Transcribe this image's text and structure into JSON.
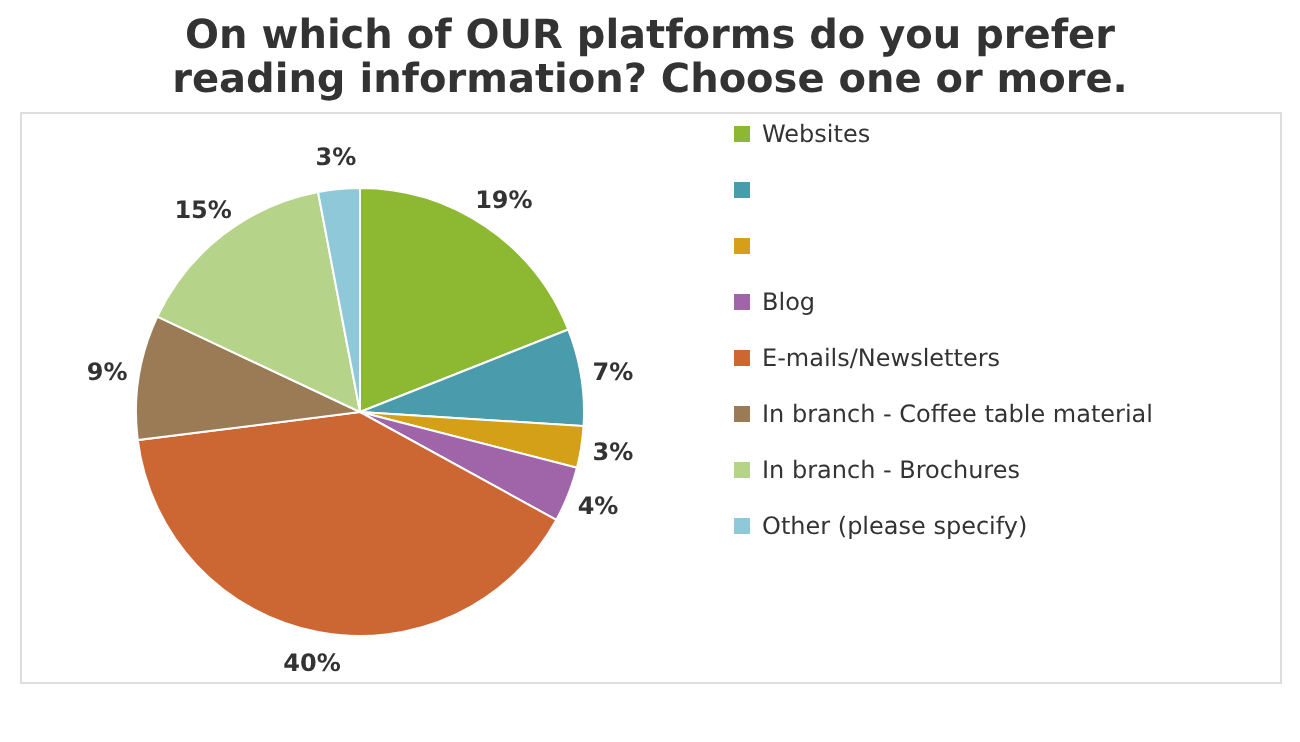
{
  "chart_data": {
    "type": "pie",
    "title": "On which of OUR platforms do you prefer reading information? Choose one or more.",
    "categories": [
      "Websites",
      null,
      null,
      "Blog",
      "E-mails/Newsletters",
      "In branch - Coffee table material",
      "In branch - Brochures",
      "Other (please specify)"
    ],
    "values": [
      19,
      7,
      3,
      4,
      40,
      9,
      15,
      3
    ],
    "value_labels": [
      "19%",
      "7%",
      "3%",
      "4%",
      "40%",
      "9%",
      "15%",
      "3%"
    ],
    "colors": [
      "#8db832",
      "#4a9bab",
      "#d4a017",
      "#a064a8",
      "#cc6633",
      "#9a7b56",
      "#b5d48a",
      "#8fc8d8"
    ],
    "legend": "right"
  }
}
